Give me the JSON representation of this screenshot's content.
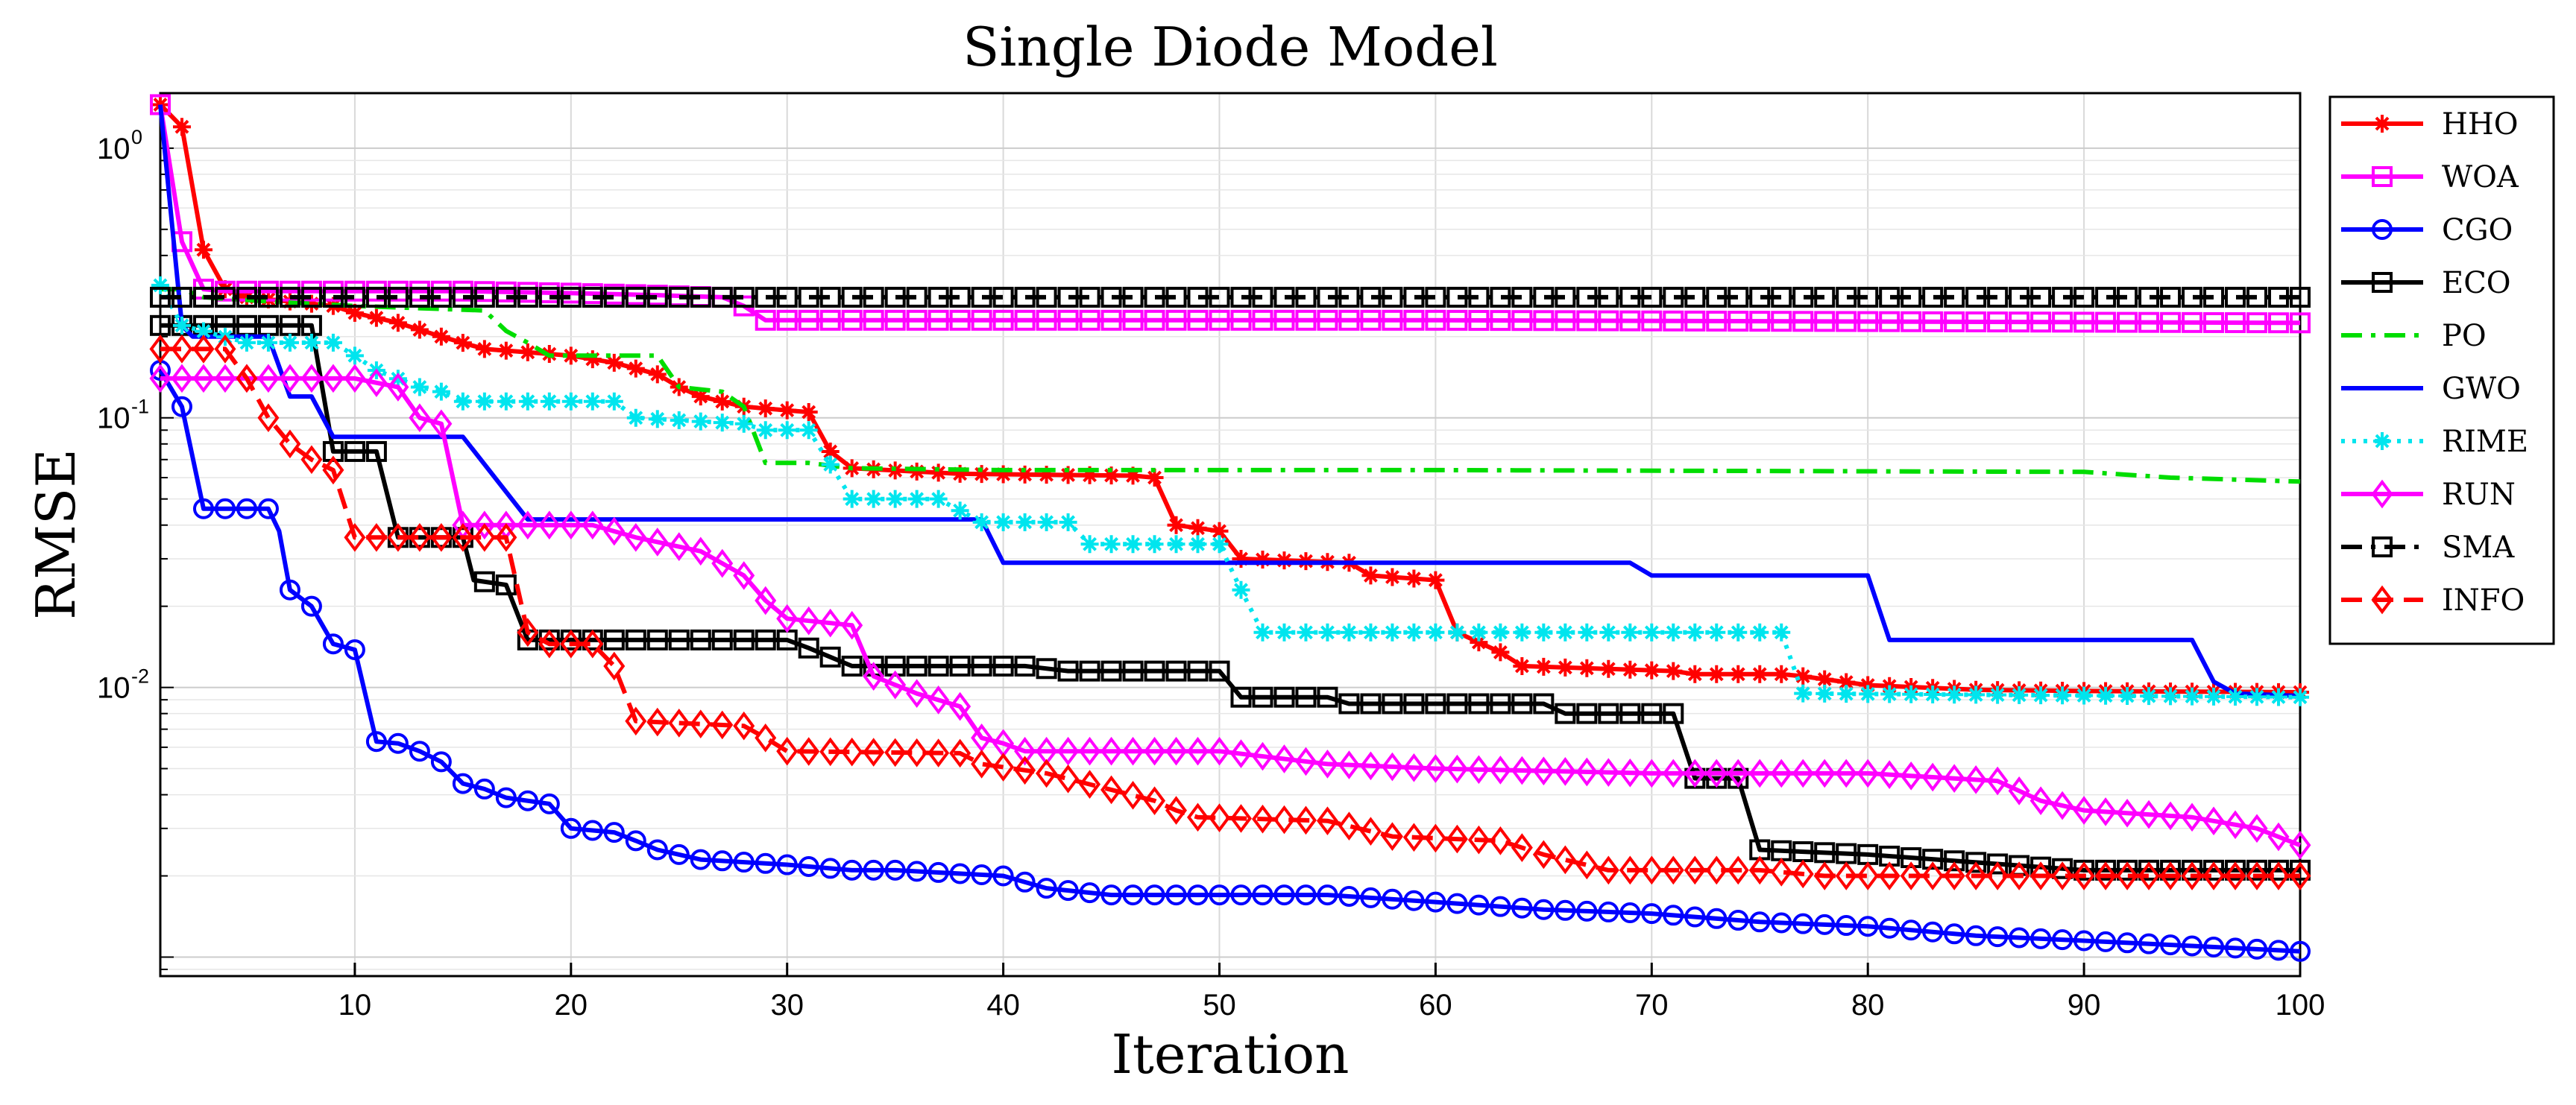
{
  "chart_data": {
    "type": "line",
    "title": "Single Diode Model",
    "xlabel": "Iteration",
    "ylabel": "RMSE",
    "xlim": [
      1,
      100
    ],
    "ylim": [
      0.00085,
      1.6
    ],
    "yscale": "log",
    "grid": true,
    "legend_position": "outside-right",
    "x_ticks": [
      10,
      20,
      30,
      40,
      50,
      60,
      70,
      80,
      90,
      100
    ],
    "y_ticks": [
      {
        "value": 1,
        "base": "10",
        "exp": "0"
      },
      {
        "value": 0.1,
        "base": "10",
        "exp": "-1"
      },
      {
        "value": 0.01,
        "base": "10",
        "exp": "-2"
      }
    ],
    "series": [
      {
        "name": "HHO",
        "color": "#ff0000",
        "dash": "solid",
        "marker": "asterisk",
        "points": [
          [
            1,
            1.45
          ],
          [
            2,
            1.2
          ],
          [
            3,
            0.42
          ],
          [
            4,
            0.3
          ],
          [
            5,
            0.28
          ],
          [
            7,
            0.27
          ],
          [
            9,
            0.26
          ],
          [
            10,
            0.245
          ],
          [
            12,
            0.225
          ],
          [
            14,
            0.2
          ],
          [
            16,
            0.18
          ],
          [
            18,
            0.175
          ],
          [
            20,
            0.17
          ],
          [
            22,
            0.16
          ],
          [
            24,
            0.145
          ],
          [
            25,
            0.13
          ],
          [
            26,
            0.12
          ],
          [
            28,
            0.11
          ],
          [
            31,
            0.105
          ],
          [
            32,
            0.075
          ],
          [
            33,
            0.065
          ],
          [
            38,
            0.062
          ],
          [
            46,
            0.061
          ],
          [
            47,
            0.06
          ],
          [
            48,
            0.04
          ],
          [
            50,
            0.038
          ],
          [
            51,
            0.03
          ],
          [
            56,
            0.029
          ],
          [
            57,
            0.026
          ],
          [
            60,
            0.025
          ],
          [
            61,
            0.016
          ],
          [
            63,
            0.0135
          ],
          [
            64,
            0.012
          ],
          [
            71,
            0.0115
          ],
          [
            72,
            0.0112
          ],
          [
            76,
            0.0112
          ],
          [
            77,
            0.011
          ],
          [
            80,
            0.0102
          ],
          [
            85,
            0.0098
          ],
          [
            90,
            0.0097
          ],
          [
            100,
            0.0096
          ]
        ]
      },
      {
        "name": "WOA",
        "color": "#ff00ff",
        "dash": "solid",
        "marker": "square",
        "points": [
          [
            1,
            1.45
          ],
          [
            2,
            0.45
          ],
          [
            3,
            0.3
          ],
          [
            4,
            0.295
          ],
          [
            15,
            0.295
          ],
          [
            20,
            0.29
          ],
          [
            24,
            0.285
          ],
          [
            27,
            0.28
          ],
          [
            28,
            0.26
          ],
          [
            29,
            0.23
          ],
          [
            60,
            0.23
          ],
          [
            100,
            0.225
          ]
        ]
      },
      {
        "name": "CGO",
        "color": "#0000ff",
        "dash": "solid",
        "marker": "circle",
        "points": [
          [
            1,
            0.15
          ],
          [
            2,
            0.11
          ],
          [
            3,
            0.046
          ],
          [
            6,
            0.046
          ],
          [
            6.5,
            0.038
          ],
          [
            7,
            0.023
          ],
          [
            8,
            0.02
          ],
          [
            9,
            0.0145
          ],
          [
            10,
            0.0138
          ],
          [
            11,
            0.0063
          ],
          [
            12,
            0.0062
          ],
          [
            13,
            0.0058
          ],
          [
            14,
            0.0053
          ],
          [
            15,
            0.0044
          ],
          [
            16,
            0.0042
          ],
          [
            17,
            0.0039
          ],
          [
            19,
            0.0037
          ],
          [
            20,
            0.003
          ],
          [
            22,
            0.0029
          ],
          [
            23,
            0.0027
          ],
          [
            24,
            0.0025
          ],
          [
            25,
            0.0024
          ],
          [
            26,
            0.0023
          ],
          [
            30,
            0.0022
          ],
          [
            33,
            0.0021
          ],
          [
            35,
            0.0021
          ],
          [
            40,
            0.002
          ],
          [
            42,
            0.0018
          ],
          [
            45,
            0.0017
          ],
          [
            55,
            0.0017
          ],
          [
            60,
            0.0016
          ],
          [
            65,
            0.0015
          ],
          [
            70,
            0.00145
          ],
          [
            75,
            0.00135
          ],
          [
            80,
            0.0013
          ],
          [
            85,
            0.0012
          ],
          [
            90,
            0.00115
          ],
          [
            95,
            0.0011
          ],
          [
            100,
            0.00105
          ]
        ]
      },
      {
        "name": "ECO",
        "color": "#000000",
        "dash": "solid",
        "marker": "square",
        "points": [
          [
            1,
            0.22
          ],
          [
            8,
            0.22
          ],
          [
            9,
            0.075
          ],
          [
            11,
            0.075
          ],
          [
            12,
            0.036
          ],
          [
            15,
            0.036
          ],
          [
            15.5,
            0.025
          ],
          [
            17,
            0.024
          ],
          [
            18,
            0.015
          ],
          [
            30,
            0.015
          ],
          [
            31,
            0.014
          ],
          [
            33,
            0.012
          ],
          [
            41,
            0.012
          ],
          [
            43,
            0.0115
          ],
          [
            50,
            0.0115
          ],
          [
            51,
            0.0092
          ],
          [
            55,
            0.0092
          ],
          [
            56,
            0.0087
          ],
          [
            65,
            0.0087
          ],
          [
            66,
            0.008
          ],
          [
            71,
            0.008
          ],
          [
            72,
            0.0046
          ],
          [
            74,
            0.0046
          ],
          [
            75,
            0.0025
          ],
          [
            80,
            0.0024
          ],
          [
            90,
            0.0021
          ],
          [
            100,
            0.0021
          ]
        ]
      },
      {
        "name": "PO",
        "color": "#00dd00",
        "dash": "dashdot",
        "marker": "none",
        "points": [
          [
            1,
            0.3
          ],
          [
            2,
            0.3
          ],
          [
            3,
            0.28
          ],
          [
            6,
            0.27
          ],
          [
            10,
            0.26
          ],
          [
            16,
            0.25
          ],
          [
            17,
            0.21
          ],
          [
            18,
            0.19
          ],
          [
            19,
            0.17
          ],
          [
            24,
            0.17
          ],
          [
            25,
            0.13
          ],
          [
            27,
            0.125
          ],
          [
            28,
            0.11
          ],
          [
            29,
            0.068
          ],
          [
            31,
            0.068
          ],
          [
            33,
            0.065
          ],
          [
            40,
            0.064
          ],
          [
            50,
            0.064
          ],
          [
            60,
            0.064
          ],
          [
            90,
            0.063
          ],
          [
            94,
            0.06
          ],
          [
            100,
            0.058
          ]
        ]
      },
      {
        "name": "GWO",
        "color": "#0000ff",
        "dash": "solid",
        "marker": "none",
        "points": [
          [
            1,
            1.45
          ],
          [
            2,
            0.22
          ],
          [
            2.5,
            0.2
          ],
          [
            6,
            0.2
          ],
          [
            7,
            0.12
          ],
          [
            8,
            0.12
          ],
          [
            9,
            0.085
          ],
          [
            15,
            0.085
          ],
          [
            18,
            0.042
          ],
          [
            39,
            0.042
          ],
          [
            40,
            0.029
          ],
          [
            69,
            0.029
          ],
          [
            70,
            0.026
          ],
          [
            80,
            0.026
          ],
          [
            81,
            0.015
          ],
          [
            95,
            0.015
          ],
          [
            96,
            0.0105
          ],
          [
            97,
            0.0095
          ],
          [
            100,
            0.0093
          ]
        ]
      },
      {
        "name": "RIME",
        "color": "#00e5ee",
        "dash": "dotted",
        "marker": "asterisk",
        "points": [
          [
            1,
            0.31
          ],
          [
            2,
            0.22
          ],
          [
            5,
            0.19
          ],
          [
            9,
            0.19
          ],
          [
            10,
            0.17
          ],
          [
            11,
            0.15
          ],
          [
            13,
            0.13
          ],
          [
            14,
            0.125
          ],
          [
            15,
            0.115
          ],
          [
            22,
            0.115
          ],
          [
            23,
            0.1
          ],
          [
            28,
            0.095
          ],
          [
            29,
            0.09
          ],
          [
            31,
            0.09
          ],
          [
            33,
            0.05
          ],
          [
            37,
            0.05
          ],
          [
            39,
            0.041
          ],
          [
            43,
            0.041
          ],
          [
            44,
            0.034
          ],
          [
            50,
            0.034
          ],
          [
            51,
            0.023
          ],
          [
            52,
            0.016
          ],
          [
            76,
            0.016
          ],
          [
            77,
            0.0095
          ],
          [
            100,
            0.0092
          ]
        ]
      },
      {
        "name": "RUN",
        "color": "#ff00ff",
        "dash": "solid",
        "marker": "diamond",
        "points": [
          [
            1,
            0.14
          ],
          [
            10,
            0.14
          ],
          [
            12,
            0.13
          ],
          [
            13,
            0.1
          ],
          [
            14,
            0.095
          ],
          [
            15,
            0.04
          ],
          [
            21,
            0.04
          ],
          [
            23,
            0.036
          ],
          [
            26,
            0.032
          ],
          [
            28,
            0.026
          ],
          [
            29,
            0.021
          ],
          [
            30,
            0.018
          ],
          [
            33,
            0.017
          ],
          [
            34,
            0.011
          ],
          [
            36,
            0.0095
          ],
          [
            38,
            0.0085
          ],
          [
            39,
            0.0065
          ],
          [
            40,
            0.0062
          ],
          [
            41,
            0.0058
          ],
          [
            50,
            0.0058
          ],
          [
            55,
            0.0052
          ],
          [
            60,
            0.005
          ],
          [
            70,
            0.0048
          ],
          [
            80,
            0.0048
          ],
          [
            86,
            0.0045
          ],
          [
            88,
            0.0038
          ],
          [
            90,
            0.0035
          ],
          [
            95,
            0.0033
          ],
          [
            98,
            0.003
          ],
          [
            100,
            0.0026
          ]
        ]
      },
      {
        "name": "SMA",
        "color": "#000000",
        "dash": "dashdot",
        "marker": "square",
        "points": [
          [
            1,
            0.28
          ],
          [
            10,
            0.28
          ],
          [
            30,
            0.28
          ],
          [
            50,
            0.28
          ],
          [
            70,
            0.28
          ],
          [
            100,
            0.28
          ]
        ]
      },
      {
        "name": "INFO",
        "color": "#ff0000",
        "dash": "dashed",
        "marker": "diamond",
        "points": [
          [
            1,
            0.18
          ],
          [
            4,
            0.18
          ],
          [
            5,
            0.14
          ],
          [
            6,
            0.1
          ],
          [
            7,
            0.08
          ],
          [
            8,
            0.07
          ],
          [
            9,
            0.064
          ],
          [
            10,
            0.036
          ],
          [
            17,
            0.036
          ],
          [
            18,
            0.016
          ],
          [
            19,
            0.0145
          ],
          [
            21,
            0.0145
          ],
          [
            22,
            0.012
          ],
          [
            23,
            0.0075
          ],
          [
            28,
            0.0072
          ],
          [
            29,
            0.0065
          ],
          [
            30,
            0.0058
          ],
          [
            38,
            0.0057
          ],
          [
            39,
            0.0052
          ],
          [
            42,
            0.0048
          ],
          [
            47,
            0.0038
          ],
          [
            48,
            0.0035
          ],
          [
            49,
            0.0033
          ],
          [
            55,
            0.0032
          ],
          [
            58,
            0.0028
          ],
          [
            63,
            0.0027
          ],
          [
            65,
            0.0024
          ],
          [
            68,
            0.0021
          ],
          [
            72,
            0.0021
          ],
          [
            75,
            0.0021
          ],
          [
            78,
            0.002
          ],
          [
            100,
            0.002
          ]
        ]
      }
    ]
  }
}
